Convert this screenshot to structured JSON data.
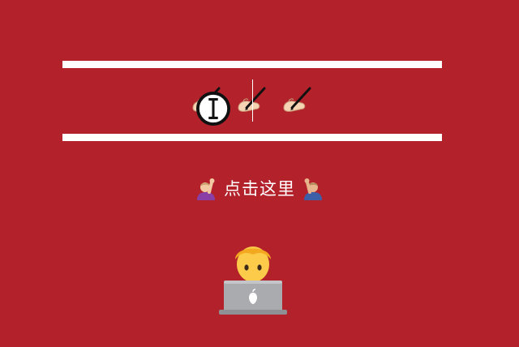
{
  "input_area": {
    "emojis": [
      {
        "icon": "writing-hand-icon"
      },
      {
        "icon": "writing-hand-icon"
      },
      {
        "icon": "writing-hand-icon"
      }
    ]
  },
  "click_prompt": {
    "label": "点击这里",
    "left_icon": "person-raising-hand-icon",
    "right_icon": "person-raising-hand-icon"
  },
  "footer": {
    "icon": "technologist-icon"
  },
  "colors": {
    "background": "#B3212B",
    "bar": "#FFFFFF",
    "text": "#FFFFFF"
  }
}
